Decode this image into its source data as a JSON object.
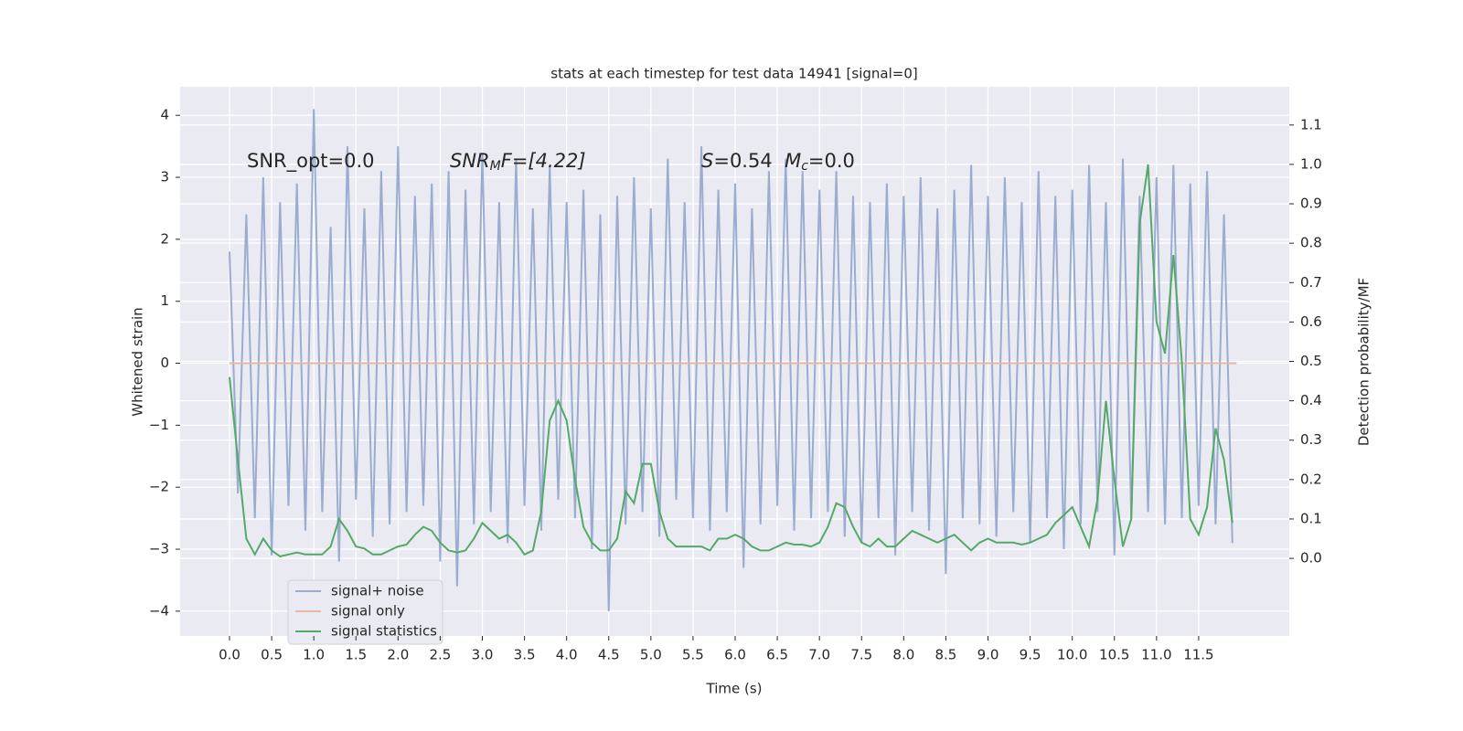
{
  "chart_data": {
    "type": "line",
    "title": "stats at each timestep for test data 14941 [signal=0]",
    "xlabel": "Time (s)",
    "ylabel": "Whitened strain",
    "y2label": "Detection probability/MF",
    "annotations": [
      [
        "SNR_opt=0.0"
      ],
      [
        "SNR",
        "M",
        "F=[4.22]"
      ],
      [
        "S",
        "=0.54  ",
        "M",
        "c",
        "=0.0"
      ]
    ],
    "x": [
      0.0,
      0.1,
      0.2,
      0.3,
      0.4,
      0.5,
      0.6,
      0.7,
      0.8,
      0.9,
      1.0,
      1.1,
      1.2,
      1.3,
      1.4,
      1.5,
      1.6,
      1.7,
      1.8,
      1.9,
      2.0,
      2.1,
      2.2,
      2.3,
      2.4,
      2.5,
      2.6,
      2.7,
      2.8,
      2.9,
      3.0,
      3.1,
      3.2,
      3.3,
      3.4,
      3.5,
      3.6,
      3.7,
      3.8,
      3.9,
      4.0,
      4.1,
      4.2,
      4.3,
      4.4,
      4.5,
      4.6,
      4.7,
      4.8,
      4.9,
      5.0,
      5.1,
      5.2,
      5.3,
      5.4,
      5.5,
      5.6,
      5.7,
      5.8,
      5.9,
      6.0,
      6.1,
      6.2,
      6.3,
      6.4,
      6.5,
      6.6,
      6.7,
      6.8,
      6.9,
      7.0,
      7.1,
      7.2,
      7.3,
      7.4,
      7.5,
      7.6,
      7.7,
      7.8,
      7.9,
      8.0,
      8.1,
      8.2,
      8.3,
      8.4,
      8.5,
      8.6,
      8.7,
      8.8,
      8.9,
      9.0,
      9.1,
      9.2,
      9.3,
      9.4,
      9.5,
      9.6,
      9.7,
      9.8,
      9.9,
      10.0,
      10.1,
      10.2,
      10.3,
      10.4,
      10.5,
      10.6,
      10.7,
      10.8,
      10.9,
      11.0,
      11.1,
      11.2,
      11.3,
      11.4,
      11.5,
      11.6,
      11.7,
      11.8,
      11.9
    ],
    "series": [
      {
        "name": "signal+ noise",
        "color": "#9aacd0",
        "values": [
          1.8,
          -2.1,
          2.4,
          -2.5,
          3.0,
          -3.1,
          2.6,
          -2.3,
          2.9,
          -2.7,
          4.1,
          -2.4,
          2.2,
          -3.2,
          3.5,
          -2.2,
          2.5,
          -2.8,
          3.1,
          -2.6,
          3.5,
          -2.4,
          2.7,
          -2.3,
          2.9,
          -3.2,
          3.1,
          -3.6,
          2.8,
          -2.6,
          3.4,
          -2.4,
          2.6,
          -2.9,
          3.3,
          -2.3,
          2.5,
          -2.7,
          3.2,
          -2.2,
          2.6,
          -2.5,
          2.8,
          -3.0,
          2.4,
          -4.0,
          2.7,
          -2.6,
          3.0,
          -2.4,
          2.5,
          -2.8,
          3.3,
          -2.2,
          2.6,
          -2.5,
          3.5,
          -2.7,
          2.8,
          -2.4,
          2.9,
          -3.3,
          2.5,
          -2.6,
          3.1,
          -2.3,
          3.3,
          -2.7,
          3.1,
          -2.5,
          2.8,
          -2.4,
          3.1,
          -2.8,
          2.7,
          -2.9,
          2.6,
          -2.5,
          2.9,
          -3.1,
          2.7,
          -2.4,
          3.0,
          -2.7,
          2.5,
          -3.4,
          2.8,
          -2.5,
          3.2,
          -2.6,
          2.7,
          -2.8,
          3.0,
          -2.4,
          2.6,
          -2.9,
          3.1,
          -2.5,
          2.7,
          -3.0,
          2.8,
          -2.6,
          3.2,
          -2.4,
          2.6,
          -3.1,
          3.3,
          -2.5,
          2.7,
          -2.4,
          3.0,
          -2.6,
          3.2,
          -2.5,
          2.9,
          -2.3,
          3.1,
          -2.6,
          2.4,
          -2.9
        ]
      },
      {
        "name": "signal only",
        "color": "#e8b9a0",
        "x": [
          0.0,
          11.95
        ],
        "values": [
          0,
          0
        ]
      },
      {
        "name": "signal statistics",
        "color": "#55a868",
        "axis": "y2",
        "values": [
          0.46,
          0.25,
          0.05,
          0.01,
          0.05,
          0.02,
          0.005,
          0.01,
          0.015,
          0.01,
          0.01,
          0.01,
          0.03,
          0.1,
          0.07,
          0.03,
          0.025,
          0.01,
          0.01,
          0.02,
          0.03,
          0.035,
          0.06,
          0.08,
          0.07,
          0.04,
          0.02,
          0.015,
          0.02,
          0.05,
          0.09,
          0.07,
          0.05,
          0.06,
          0.04,
          0.01,
          0.02,
          0.12,
          0.35,
          0.4,
          0.35,
          0.2,
          0.08,
          0.04,
          0.02,
          0.02,
          0.05,
          0.17,
          0.14,
          0.24,
          0.24,
          0.12,
          0.05,
          0.03,
          0.03,
          0.03,
          0.03,
          0.02,
          0.05,
          0.05,
          0.06,
          0.05,
          0.03,
          0.02,
          0.02,
          0.03,
          0.04,
          0.035,
          0.035,
          0.03,
          0.04,
          0.08,
          0.14,
          0.13,
          0.08,
          0.04,
          0.03,
          0.05,
          0.03,
          0.03,
          0.05,
          0.07,
          0.06,
          0.05,
          0.04,
          0.05,
          0.06,
          0.04,
          0.02,
          0.04,
          0.05,
          0.04,
          0.04,
          0.04,
          0.035,
          0.04,
          0.05,
          0.06,
          0.09,
          0.11,
          0.13,
          0.08,
          0.03,
          0.15,
          0.4,
          0.2,
          0.03,
          0.1,
          0.85,
          1.0,
          0.6,
          0.52,
          0.77,
          0.5,
          0.1,
          0.06,
          0.13,
          0.33,
          0.25,
          0.09
        ]
      }
    ],
    "xlim": [
      -0.586,
      12.575
    ],
    "xticks": [
      {
        "value": 0,
        "label": "0.0"
      },
      0.5,
      {
        "value": 1,
        "label": "1.0"
      },
      1.5,
      {
        "value": 2,
        "label": "2.0"
      },
      2.5,
      {
        "value": 3,
        "label": "3.0"
      },
      3.5,
      {
        "value": 4,
        "label": "4.0"
      },
      4.5,
      {
        "value": 5,
        "label": "5.0"
      },
      5.5,
      {
        "value": 6,
        "label": "6.0"
      },
      6.5,
      {
        "value": 7,
        "label": "7.0"
      },
      7.5,
      {
        "value": 8,
        "label": "8.0"
      },
      8.5,
      {
        "value": 9,
        "label": "9.0"
      },
      9.5,
      {
        "value": 10,
        "label": "10.0"
      },
      10.5,
      {
        "value": 11,
        "label": "11.0"
      },
      11.5
    ],
    "ylim": [
      -4.4,
      4.46
    ],
    "yticks": [
      {
        "value": -4,
        "label": "−4"
      },
      {
        "value": -3,
        "label": "−3"
      },
      {
        "value": -2,
        "label": "−2"
      },
      {
        "value": -1,
        "label": "−1"
      },
      0,
      1,
      2,
      3,
      4
    ],
    "y2lim": [
      -0.197,
      1.197
    ],
    "y2ticks": [
      {
        "value": 0,
        "label": "0.0"
      },
      0.1,
      0.2,
      0.3,
      0.4,
      0.5,
      0.6,
      0.7,
      0.8,
      0.9,
      {
        "value": 1,
        "label": "1.0"
      },
      1.1
    ],
    "grid": true,
    "legend": "lower left"
  }
}
